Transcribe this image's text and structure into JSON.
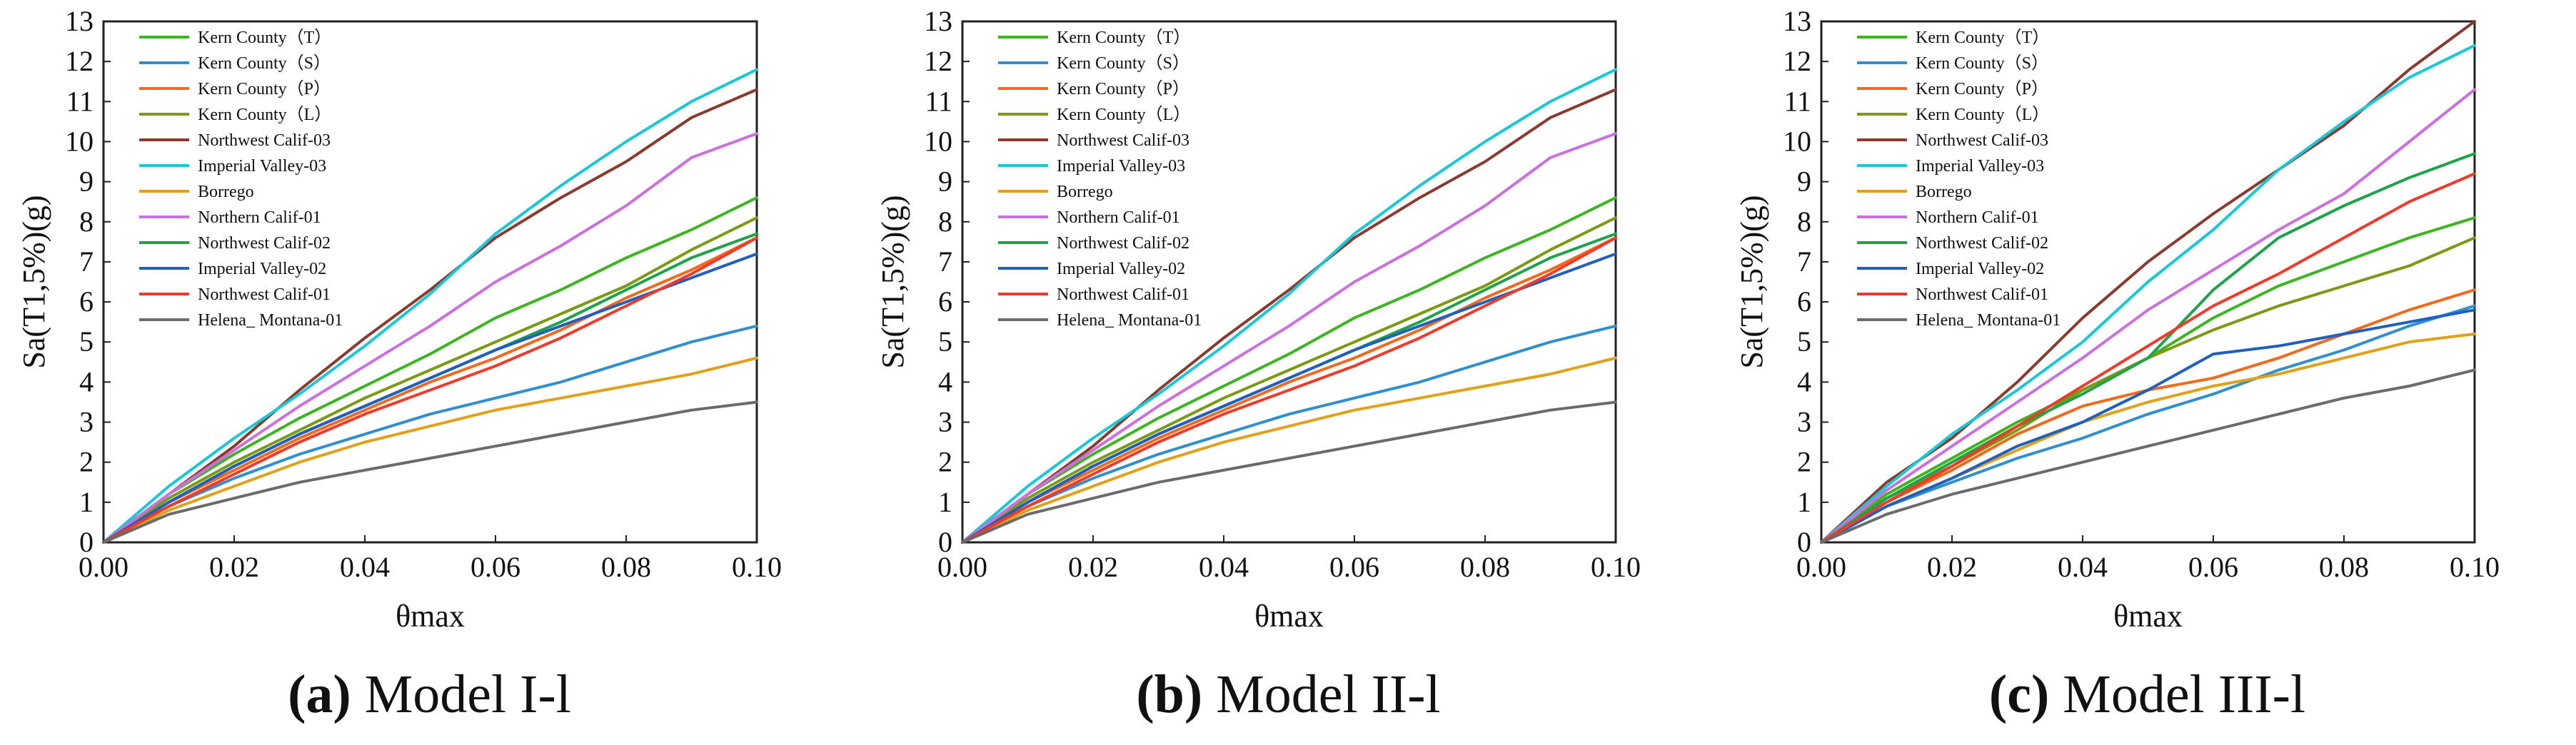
{
  "colors": {
    "Kern County（T）": "#3cb521",
    "Kern County（S）": "#2f8fcf",
    "Kern County（P）": "#f26a1b",
    "Kern County（L）": "#7a9a12",
    "Northwest Calif-03": "#8b3a2e",
    "Imperial Valley-03": "#19c8d8",
    "Borrego": "#e3a019",
    "Northern Calif-01": "#cc6fe0",
    "Northwest Calif-02": "#1ea34a",
    "Imperial Valley-02": "#1f5fbf",
    "Northwest Calif-01": "#f23a2a",
    "Helena_ Montana-01": "#6b6b6b"
  },
  "chart_data": [
    {
      "type": "line",
      "caption_letter": "(a)",
      "caption_text": " Model I-l",
      "xlabel": "θmax",
      "ylabel": "Sa(T1,5%)(g)",
      "xlim": [
        0,
        0.1
      ],
      "ylim": [
        0,
        13
      ],
      "xticks": [
        "0.00",
        "0.02",
        "0.04",
        "0.06",
        "0.08",
        "0.10"
      ],
      "yticks": [
        "0",
        "1",
        "2",
        "3",
        "4",
        "5",
        "6",
        "7",
        "8",
        "9",
        "10",
        "11",
        "12",
        "13"
      ],
      "legend_position": "top-left",
      "x": [
        0,
        0.01,
        0.02,
        0.03,
        0.04,
        0.05,
        0.06,
        0.07,
        0.08,
        0.09,
        0.1
      ],
      "series": [
        {
          "name": "Kern County（T）",
          "values": [
            0,
            1.2,
            2.2,
            3.1,
            3.9,
            4.7,
            5.6,
            6.3,
            7.1,
            7.8,
            8.6
          ]
        },
        {
          "name": "Kern County（S）",
          "values": [
            0,
            0.9,
            1.6,
            2.2,
            2.7,
            3.2,
            3.6,
            4.0,
            4.5,
            5.0,
            5.4
          ]
        },
        {
          "name": "Kern County（P）",
          "values": [
            0,
            1.0,
            1.8,
            2.6,
            3.3,
            4.0,
            4.6,
            5.3,
            6.1,
            6.8,
            7.6
          ]
        },
        {
          "name": "Kern County（L）",
          "values": [
            0,
            1.1,
            2.0,
            2.8,
            3.6,
            4.3,
            5.0,
            5.7,
            6.4,
            7.3,
            8.1
          ]
        },
        {
          "name": "Northwest Calif-03",
          "values": [
            0,
            1.2,
            2.4,
            3.8,
            5.1,
            6.3,
            7.6,
            8.6,
            9.5,
            10.6,
            11.3
          ]
        },
        {
          "name": "Imperial Valley-03",
          "values": [
            0,
            1.4,
            2.6,
            3.7,
            4.9,
            6.2,
            7.7,
            8.9,
            10.0,
            11.0,
            11.8
          ]
        },
        {
          "name": "Borrego",
          "values": [
            0,
            0.8,
            1.4,
            2.0,
            2.5,
            2.9,
            3.3,
            3.6,
            3.9,
            4.2,
            4.6
          ]
        },
        {
          "name": "Northern Calif-01",
          "values": [
            0,
            1.2,
            2.3,
            3.4,
            4.4,
            5.4,
            6.5,
            7.4,
            8.4,
            9.6,
            10.2
          ]
        },
        {
          "name": "Northwest Calif-02",
          "values": [
            0,
            1.0,
            1.9,
            2.7,
            3.4,
            4.1,
            4.8,
            5.5,
            6.3,
            7.1,
            7.7
          ]
        },
        {
          "name": "Imperial Valley-02",
          "values": [
            0,
            1.0,
            1.9,
            2.7,
            3.4,
            4.1,
            4.8,
            5.4,
            6.0,
            6.6,
            7.2
          ]
        },
        {
          "name": "Northwest Calif-01",
          "values": [
            0,
            0.9,
            1.7,
            2.5,
            3.2,
            3.8,
            4.4,
            5.1,
            5.9,
            6.7,
            7.6
          ]
        },
        {
          "name": "Helena_ Montana-01",
          "values": [
            0,
            0.7,
            1.1,
            1.5,
            1.8,
            2.1,
            2.4,
            2.7,
            3.0,
            3.3,
            3.5
          ]
        }
      ]
    },
    {
      "type": "line",
      "caption_letter": "(b)",
      "caption_text": " Model II-l",
      "xlabel": "θmax",
      "ylabel": "Sa(T1,5%)(g)",
      "xlim": [
        0,
        0.1
      ],
      "ylim": [
        0,
        13
      ],
      "xticks": [
        "0.00",
        "0.02",
        "0.04",
        "0.06",
        "0.08",
        "0.10"
      ],
      "yticks": [
        "0",
        "1",
        "2",
        "3",
        "4",
        "5",
        "6",
        "7",
        "8",
        "9",
        "10",
        "11",
        "12",
        "13"
      ],
      "legend_position": "top-left",
      "x": [
        0,
        0.01,
        0.02,
        0.03,
        0.04,
        0.05,
        0.06,
        0.07,
        0.08,
        0.09,
        0.1
      ],
      "series": [
        {
          "name": "Kern County（T）",
          "values": [
            0,
            1.2,
            2.2,
            3.1,
            3.9,
            4.7,
            5.6,
            6.3,
            7.1,
            7.8,
            8.6
          ]
        },
        {
          "name": "Kern County（S）",
          "values": [
            0,
            0.9,
            1.6,
            2.2,
            2.7,
            3.2,
            3.6,
            4.0,
            4.5,
            5.0,
            5.4
          ]
        },
        {
          "name": "Kern County（P）",
          "values": [
            0,
            1.0,
            1.8,
            2.6,
            3.3,
            4.0,
            4.6,
            5.3,
            6.1,
            6.8,
            7.6
          ]
        },
        {
          "name": "Kern County（L）",
          "values": [
            0,
            1.1,
            2.0,
            2.8,
            3.6,
            4.3,
            5.0,
            5.7,
            6.4,
            7.3,
            8.1
          ]
        },
        {
          "name": "Northwest Calif-03",
          "values": [
            0,
            1.2,
            2.4,
            3.8,
            5.1,
            6.3,
            7.6,
            8.6,
            9.5,
            10.6,
            11.3
          ]
        },
        {
          "name": "Imperial Valley-03",
          "values": [
            0,
            1.4,
            2.6,
            3.7,
            4.9,
            6.2,
            7.7,
            8.9,
            10.0,
            11.0,
            11.8
          ]
        },
        {
          "name": "Borrego",
          "values": [
            0,
            0.8,
            1.4,
            2.0,
            2.5,
            2.9,
            3.3,
            3.6,
            3.9,
            4.2,
            4.6
          ]
        },
        {
          "name": "Northern Calif-01",
          "values": [
            0,
            1.2,
            2.3,
            3.4,
            4.4,
            5.4,
            6.5,
            7.4,
            8.4,
            9.6,
            10.2
          ]
        },
        {
          "name": "Northwest Calif-02",
          "values": [
            0,
            1.0,
            1.9,
            2.7,
            3.4,
            4.1,
            4.8,
            5.5,
            6.3,
            7.1,
            7.7
          ]
        },
        {
          "name": "Imperial Valley-02",
          "values": [
            0,
            1.0,
            1.9,
            2.7,
            3.4,
            4.1,
            4.8,
            5.4,
            6.0,
            6.6,
            7.2
          ]
        },
        {
          "name": "Northwest Calif-01",
          "values": [
            0,
            0.9,
            1.7,
            2.5,
            3.2,
            3.8,
            4.4,
            5.1,
            5.9,
            6.7,
            7.6
          ]
        },
        {
          "name": "Helena_ Montana-01",
          "values": [
            0,
            0.7,
            1.1,
            1.5,
            1.8,
            2.1,
            2.4,
            2.7,
            3.0,
            3.3,
            3.5
          ]
        }
      ]
    },
    {
      "type": "line",
      "caption_letter": "(c)",
      "caption_text": " Model III-l",
      "xlabel": "θmax",
      "ylabel": "Sa(T1,5%)(g)",
      "xlim": [
        0,
        0.1
      ],
      "ylim": [
        0,
        13
      ],
      "xticks": [
        "0.00",
        "0.02",
        "0.04",
        "0.06",
        "0.08",
        "0.10"
      ],
      "yticks": [
        "0",
        "1",
        "2",
        "3",
        "4",
        "5",
        "6",
        "7",
        "8",
        "9",
        "10",
        "11",
        "12",
        "13"
      ],
      "legend_position": "top-left",
      "x": [
        0,
        0.01,
        0.02,
        0.03,
        0.04,
        0.05,
        0.06,
        0.07,
        0.08,
        0.09,
        0.1
      ],
      "series": [
        {
          "name": "Kern County（T）",
          "values": [
            0,
            1.2,
            2.1,
            3.0,
            3.8,
            4.6,
            5.6,
            6.4,
            7.0,
            7.6,
            8.1
          ]
        },
        {
          "name": "Kern County（S）",
          "values": [
            0,
            0.9,
            1.5,
            2.1,
            2.6,
            3.2,
            3.7,
            4.3,
            4.8,
            5.4,
            5.9
          ]
        },
        {
          "name": "Kern County（P）",
          "values": [
            0,
            1.0,
            1.8,
            2.7,
            3.4,
            3.8,
            4.1,
            4.6,
            5.2,
            5.8,
            6.3
          ]
        },
        {
          "name": "Kern County（L）",
          "values": [
            0,
            1.1,
            1.9,
            2.8,
            3.8,
            4.6,
            5.3,
            5.9,
            6.4,
            6.9,
            7.6
          ]
        },
        {
          "name": "Northwest Calif-03",
          "values": [
            0,
            1.5,
            2.6,
            4.0,
            5.6,
            7.0,
            8.2,
            9.3,
            10.4,
            11.8,
            13.0
          ]
        },
        {
          "name": "Imperial Valley-03",
          "values": [
            0,
            1.4,
            2.7,
            3.8,
            5.0,
            6.5,
            7.8,
            9.3,
            10.5,
            11.6,
            12.4
          ]
        },
        {
          "name": "Borrego",
          "values": [
            0,
            0.9,
            1.6,
            2.3,
            3.0,
            3.5,
            3.9,
            4.2,
            4.6,
            5.0,
            5.2
          ]
        },
        {
          "name": "Northern Calif-01",
          "values": [
            0,
            1.3,
            2.4,
            3.5,
            4.6,
            5.8,
            6.8,
            7.8,
            8.7,
            10.0,
            11.3
          ]
        },
        {
          "name": "Northwest Calif-02",
          "values": [
            0,
            1.1,
            2.0,
            2.9,
            3.7,
            4.6,
            6.3,
            7.6,
            8.4,
            9.1,
            9.7
          ]
        },
        {
          "name": "Imperial Valley-02",
          "values": [
            0,
            0.9,
            1.6,
            2.4,
            3.0,
            3.8,
            4.7,
            4.9,
            5.2,
            5.5,
            5.8
          ]
        },
        {
          "name": "Northwest Calif-01",
          "values": [
            0,
            1.0,
            1.9,
            2.9,
            3.9,
            4.9,
            5.9,
            6.7,
            7.6,
            8.5,
            9.2
          ]
        },
        {
          "name": "Helena_ Montana-01",
          "values": [
            0,
            0.7,
            1.2,
            1.6,
            2.0,
            2.4,
            2.8,
            3.2,
            3.6,
            3.9,
            4.3
          ]
        }
      ]
    }
  ]
}
